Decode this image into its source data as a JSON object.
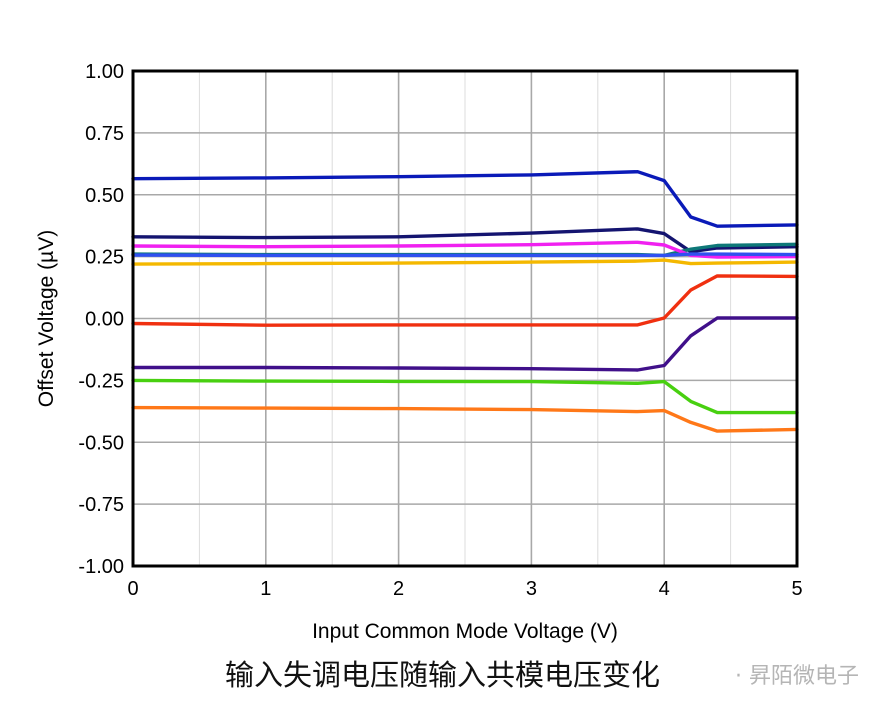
{
  "chart_data": {
    "type": "line",
    "xlabel": "Input Common Mode Voltage (V)",
    "ylabel": "Offset Voltage (µV)",
    "xlim": [
      0,
      5
    ],
    "ylim": [
      -1.0,
      1.0
    ],
    "xticks": [
      "0",
      "1",
      "2",
      "3",
      "4",
      "5"
    ],
    "yticks": [
      "1.00",
      "0.75",
      "0.50",
      "0.25",
      "0.00",
      "-0.25",
      "-0.50",
      "-0.75",
      "-1.00"
    ],
    "grid": true,
    "x": [
      0,
      1,
      2,
      3,
      3.8,
      4.0,
      4.2,
      4.4,
      5.0
    ],
    "series": [
      {
        "color": "#0a1ab8",
        "values": [
          0.565,
          0.568,
          0.573,
          0.58,
          0.593,
          0.557,
          0.41,
          0.373,
          0.378
        ]
      },
      {
        "color": "#141470",
        "values": [
          0.33,
          0.327,
          0.33,
          0.345,
          0.362,
          0.343,
          0.27,
          0.285,
          0.29
        ]
      },
      {
        "color": "#0e7878",
        "values": [
          0.26,
          0.258,
          0.258,
          0.258,
          0.258,
          0.255,
          0.28,
          0.295,
          0.3
        ]
      },
      {
        "color": "#f020f0",
        "values": [
          0.293,
          0.29,
          0.293,
          0.298,
          0.308,
          0.297,
          0.255,
          0.248,
          0.25
        ]
      },
      {
        "color": "#3050f0",
        "values": [
          0.256,
          0.255,
          0.255,
          0.255,
          0.255,
          0.255,
          0.26,
          0.26,
          0.258
        ]
      },
      {
        "color": "#f4b800",
        "values": [
          0.22,
          0.222,
          0.224,
          0.228,
          0.232,
          0.236,
          0.222,
          0.224,
          0.228
        ]
      },
      {
        "color": "#f03010",
        "values": [
          -0.02,
          -0.027,
          -0.026,
          -0.026,
          -0.026,
          0.002,
          0.115,
          0.172,
          0.17
        ]
      },
      {
        "color": "#40108a",
        "values": [
          -0.198,
          -0.198,
          -0.2,
          -0.203,
          -0.208,
          -0.19,
          -0.07,
          0.002,
          0.002
        ]
      },
      {
        "color": "#48d010",
        "values": [
          -0.25,
          -0.253,
          -0.254,
          -0.255,
          -0.262,
          -0.255,
          -0.335,
          -0.38,
          -0.38
        ]
      },
      {
        "color": "#ff7818",
        "values": [
          -0.36,
          -0.362,
          -0.364,
          -0.368,
          -0.376,
          -0.372,
          -0.42,
          -0.455,
          -0.448
        ]
      }
    ]
  },
  "caption": "输入失调电压随输入共模电压变化",
  "watermark": "· 昇陌微电子"
}
